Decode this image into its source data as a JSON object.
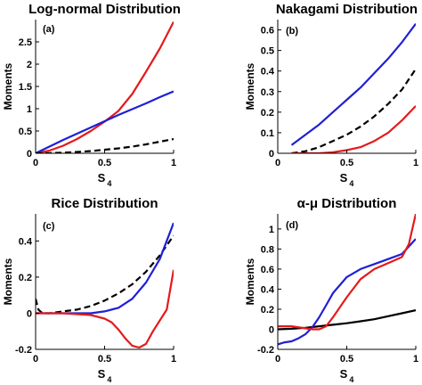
{
  "chart_data": [
    {
      "id": "a",
      "type": "line",
      "panel_label": "(a)",
      "title": "Log-normal Distribution",
      "xlabel": "S",
      "xlabel_sub": "4",
      "ylabel": "Moments",
      "xlim": [
        0,
        1
      ],
      "ylim": [
        0,
        3
      ],
      "xticks": [
        0,
        0.5,
        1
      ],
      "xtick_labels": [
        "0",
        "0.5",
        "1"
      ],
      "yticks": [
        0,
        0.5,
        1,
        1.5,
        2,
        2.5
      ],
      "ytick_labels": [
        "0",
        "0.5",
        "1",
        "1.5",
        "2",
        "2.5"
      ],
      "grid": false,
      "series": [
        {
          "color": "#e41a1c",
          "dash": "solid",
          "x": [
            0,
            0.1,
            0.2,
            0.3,
            0.4,
            0.5,
            0.6,
            0.7,
            0.8,
            0.9,
            1.0
          ],
          "y": [
            0,
            0.06,
            0.17,
            0.32,
            0.5,
            0.71,
            0.95,
            1.33,
            1.83,
            2.35,
            2.95
          ]
        },
        {
          "color": "#1f1fd6",
          "dash": "solid",
          "x": [
            0,
            0.1,
            0.2,
            0.3,
            0.4,
            0.5,
            0.6,
            0.7,
            0.8,
            0.9,
            1.0
          ],
          "y": [
            0,
            0.15,
            0.3,
            0.44,
            0.58,
            0.72,
            0.86,
            0.99,
            1.12,
            1.26,
            1.39
          ]
        },
        {
          "color": "#000000",
          "dash": "dashed",
          "x": [
            0,
            0.1,
            0.2,
            0.3,
            0.4,
            0.5,
            0.6,
            0.7,
            0.8,
            0.9,
            1.0
          ],
          "y": [
            0,
            0.005,
            0.015,
            0.03,
            0.05,
            0.08,
            0.11,
            0.15,
            0.2,
            0.26,
            0.32
          ]
        }
      ]
    },
    {
      "id": "b",
      "type": "line",
      "panel_label": "(b)",
      "title": "Nakagami Distribution",
      "xlabel": "S",
      "xlabel_sub": "4",
      "ylabel": "Moments",
      "xlim": [
        0,
        1
      ],
      "ylim": [
        0,
        0.65
      ],
      "xticks": [
        0,
        0.5,
        1
      ],
      "xtick_labels": [
        "0",
        "0.5",
        "1"
      ],
      "yticks": [
        0,
        0.1,
        0.2,
        0.3,
        0.4,
        0.5,
        0.6
      ],
      "ytick_labels": [
        "0",
        "0.1",
        "0.2",
        "0.3",
        "0.4",
        "0.5",
        "0.6"
      ],
      "grid": false,
      "series": [
        {
          "color": "#1f1fd6",
          "dash": "solid",
          "x": [
            0.1,
            0.2,
            0.3,
            0.4,
            0.5,
            0.6,
            0.7,
            0.8,
            0.9,
            1.0
          ],
          "y": [
            0.04,
            0.09,
            0.14,
            0.2,
            0.26,
            0.32,
            0.39,
            0.46,
            0.54,
            0.63
          ]
        },
        {
          "color": "#000000",
          "dash": "dashed",
          "x": [
            0.1,
            0.2,
            0.3,
            0.4,
            0.5,
            0.6,
            0.7,
            0.8,
            0.9,
            1.0
          ],
          "y": [
            0.0,
            0.01,
            0.03,
            0.06,
            0.09,
            0.13,
            0.18,
            0.24,
            0.31,
            0.41
          ]
        },
        {
          "color": "#e41a1c",
          "dash": "solid",
          "x": [
            0.1,
            0.2,
            0.3,
            0.4,
            0.5,
            0.6,
            0.7,
            0.8,
            0.9,
            1.0
          ],
          "y": [
            0,
            0.0,
            0.0,
            0.005,
            0.015,
            0.03,
            0.06,
            0.1,
            0.16,
            0.23
          ]
        }
      ]
    },
    {
      "id": "c",
      "type": "line",
      "panel_label": "(c)",
      "title": "Rice Distribution",
      "xlabel": "S",
      "xlabel_sub": "4",
      "ylabel": "Moments",
      "xlim": [
        0,
        1
      ],
      "ylim": [
        -0.2,
        0.55
      ],
      "xticks": [
        0,
        0.5,
        1
      ],
      "xtick_labels": [
        "0",
        "0.5",
        "1"
      ],
      "yticks": [
        -0.2,
        0,
        0.2,
        0.4
      ],
      "ytick_labels": [
        "-0.2",
        "0",
        "0.2",
        "0.4"
      ],
      "grid": false,
      "series": [
        {
          "color": "#000000",
          "dash": "dashed",
          "x": [
            0,
            0.02,
            0.05,
            0.1,
            0.2,
            0.3,
            0.4,
            0.5,
            0.6,
            0.7,
            0.8,
            0.9,
            1.0
          ],
          "y": [
            0.08,
            0.02,
            0.0,
            0.0,
            0.01,
            0.02,
            0.04,
            0.07,
            0.11,
            0.16,
            0.23,
            0.32,
            0.43
          ]
        },
        {
          "color": "#1f1fd6",
          "dash": "solid",
          "x": [
            0,
            0.1,
            0.2,
            0.3,
            0.4,
            0.5,
            0.6,
            0.7,
            0.8,
            0.9,
            1.0
          ],
          "y": [
            0,
            0,
            0,
            0.0,
            0.0,
            0.01,
            0.03,
            0.08,
            0.17,
            0.3,
            0.5
          ]
        },
        {
          "color": "#e41a1c",
          "dash": "solid",
          "x": [
            0,
            0.1,
            0.2,
            0.3,
            0.4,
            0.5,
            0.55,
            0.6,
            0.65,
            0.7,
            0.75,
            0.8,
            0.85,
            0.9,
            0.95,
            1.0
          ],
          "y": [
            0,
            0,
            0,
            -0.005,
            -0.01,
            -0.03,
            -0.05,
            -0.09,
            -0.14,
            -0.18,
            -0.19,
            -0.17,
            -0.1,
            -0.04,
            0.02,
            0.24
          ]
        }
      ]
    },
    {
      "id": "d",
      "type": "line",
      "panel_label": "(d)",
      "title": "α-μ Distribution",
      "xlabel": "S",
      "xlabel_sub": "4",
      "ylabel": "Moments",
      "xlim": [
        0,
        1
      ],
      "ylim": [
        -0.2,
        1.15
      ],
      "xticks": [
        0,
        0.5,
        1
      ],
      "xtick_labels": [
        "0",
        "0.5",
        "1"
      ],
      "yticks": [
        -0.2,
        0,
        0.2,
        0.4,
        0.6,
        0.8,
        1
      ],
      "ytick_labels": [
        "-0.2",
        "0",
        "0.2",
        "0.4",
        "0.6",
        "0.8",
        "1"
      ],
      "grid": false,
      "series": [
        {
          "color": "#000000",
          "dash": "solid",
          "x": [
            0,
            0.1,
            0.2,
            0.3,
            0.4,
            0.5,
            0.6,
            0.7,
            0.8,
            0.9,
            1.0
          ],
          "y": [
            0,
            0.005,
            0.015,
            0.03,
            0.045,
            0.06,
            0.08,
            0.1,
            0.13,
            0.16,
            0.19
          ]
        },
        {
          "color": "#1f1fd6",
          "dash": "solid",
          "x": [
            0,
            0.05,
            0.1,
            0.15,
            0.2,
            0.25,
            0.3,
            0.35,
            0.4,
            0.5,
            0.6,
            0.7,
            0.8,
            0.9,
            1.0
          ],
          "y": [
            -0.15,
            -0.13,
            -0.12,
            -0.09,
            -0.05,
            0.02,
            0.12,
            0.24,
            0.36,
            0.52,
            0.6,
            0.65,
            0.7,
            0.75,
            0.9
          ]
        },
        {
          "color": "#e41a1c",
          "dash": "solid",
          "x": [
            0,
            0.1,
            0.2,
            0.25,
            0.3,
            0.35,
            0.4,
            0.5,
            0.6,
            0.7,
            0.8,
            0.9,
            0.95,
            1.0
          ],
          "y": [
            0.03,
            0.03,
            0.01,
            0.0,
            0.0,
            0.03,
            0.12,
            0.32,
            0.5,
            0.6,
            0.66,
            0.72,
            0.85,
            1.15
          ]
        }
      ]
    }
  ]
}
